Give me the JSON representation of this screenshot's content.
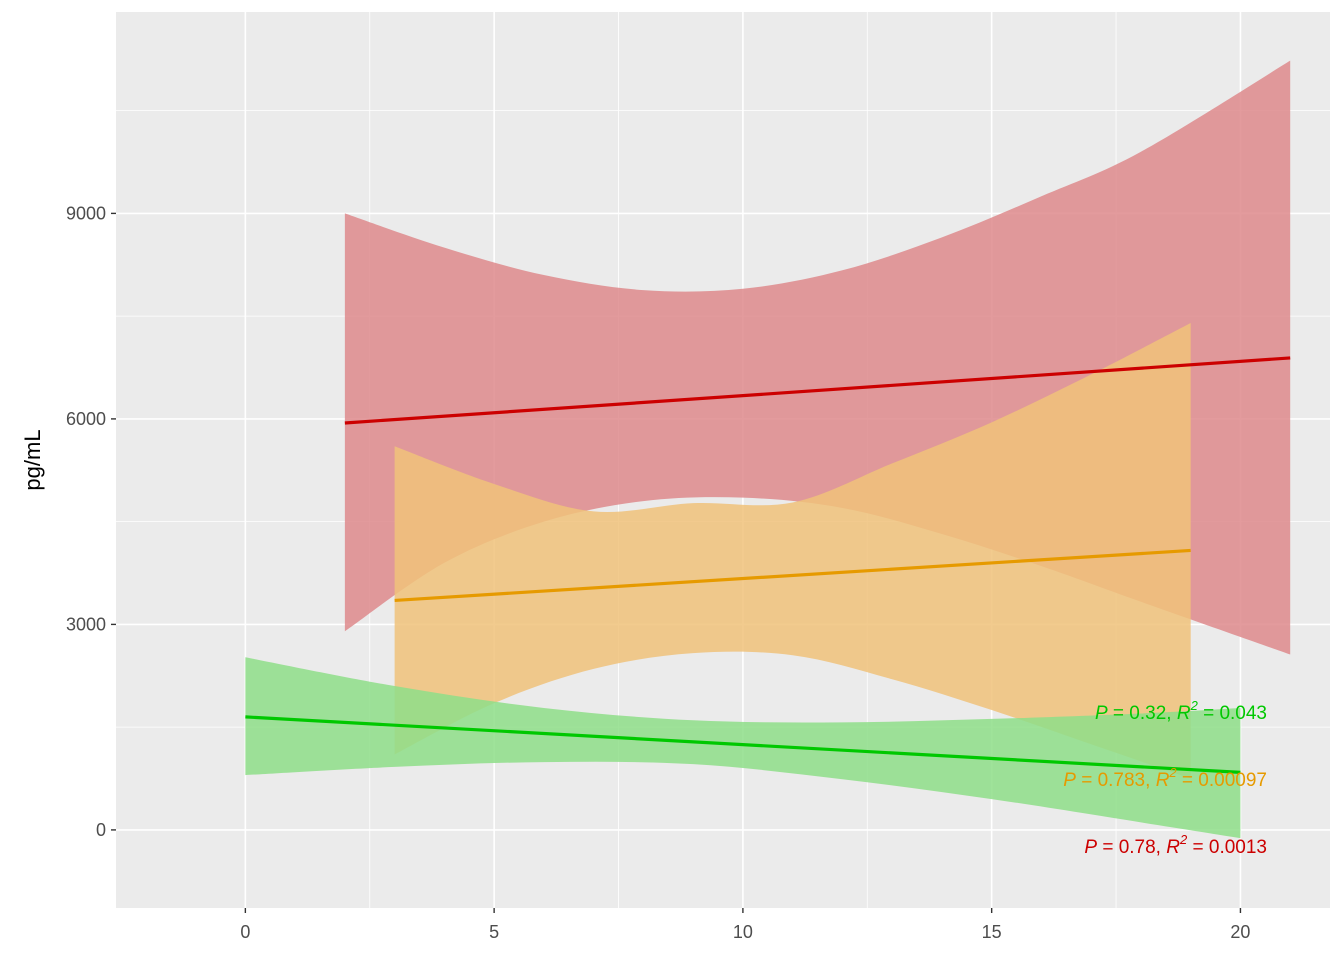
{
  "chart_data": {
    "type": "line",
    "title": "",
    "xlabel": "",
    "ylabel": "pg/mL",
    "xlim": [
      -2.6,
      21.8
    ],
    "ylim": [
      -1140,
      11940
    ],
    "x_ticks": [
      0,
      5,
      10,
      15,
      20
    ],
    "y_ticks": [
      0,
      3000,
      6000,
      9000
    ],
    "x_tick_labels": [
      "0",
      "5",
      "10",
      "15",
      "20"
    ],
    "y_tick_labels": [
      "0",
      "3000",
      "6000",
      "9000"
    ],
    "grid": true,
    "legend": "none",
    "background": "#ebebeb",
    "series": [
      {
        "color": "#cc0000",
        "fill": "#de8a8c",
        "fit_x": [
          2,
          21
        ],
        "fit_y": [
          5940,
          6890
        ],
        "band": [
          {
            "x": 2,
            "lower": 2900,
            "upper": 9000
          },
          {
            "x": 4,
            "lower": 3900,
            "upper": 8500
          },
          {
            "x": 6,
            "lower": 4500,
            "upper": 8100
          },
          {
            "x": 8,
            "lower": 4800,
            "upper": 7880
          },
          {
            "x": 10,
            "lower": 4850,
            "upper": 7900
          },
          {
            "x": 12,
            "lower": 4700,
            "upper": 8170
          },
          {
            "x": 14,
            "lower": 4320,
            "upper": 8650
          },
          {
            "x": 16,
            "lower": 3850,
            "upper": 9250
          },
          {
            "x": 18,
            "lower": 3330,
            "upper": 9900
          },
          {
            "x": 21,
            "lower": 2560,
            "upper": 11230
          }
        ],
        "annotation": {
          "p_label": "P",
          "p_value": " = 0.78, ",
          "r_label": "R",
          "sup": "2",
          "r_value": " = 0.0013"
        }
      },
      {
        "color": "#e69a00",
        "fill": "#f0c27a",
        "fit_x": [
          3,
          19
        ],
        "fit_y": [
          3350,
          4080
        ],
        "band": [
          {
            "x": 3,
            "lower": 1100,
            "upper": 5600
          },
          {
            "x": 5,
            "lower": 1850,
            "upper": 5050
          },
          {
            "x": 7,
            "lower": 2350,
            "upper": 4650
          },
          {
            "x": 9,
            "lower": 2580,
            "upper": 4770
          },
          {
            "x": 11,
            "lower": 2550,
            "upper": 4780
          },
          {
            "x": 13,
            "lower": 2200,
            "upper": 5350
          },
          {
            "x": 15,
            "lower": 1750,
            "upper": 5950
          },
          {
            "x": 17,
            "lower": 1250,
            "upper": 6650
          },
          {
            "x": 19,
            "lower": 750,
            "upper": 7400
          }
        ],
        "annotation": {
          "p_label": "P",
          "p_value": " = 0.783, ",
          "r_label": "R",
          "sup": "2",
          "r_value": " = 0.00097"
        }
      },
      {
        "color": "#00c800",
        "fill": "#8ede88",
        "fit_x": [
          0,
          20
        ],
        "fit_y": [
          1650,
          840
        ],
        "band": [
          {
            "x": 0,
            "lower": 800,
            "upper": 2520
          },
          {
            "x": 3,
            "lower": 920,
            "upper": 2100
          },
          {
            "x": 6,
            "lower": 990,
            "upper": 1780
          },
          {
            "x": 9,
            "lower": 960,
            "upper": 1600
          },
          {
            "x": 12,
            "lower": 740,
            "upper": 1570
          },
          {
            "x": 15,
            "lower": 450,
            "upper": 1620
          },
          {
            "x": 18,
            "lower": 110,
            "upper": 1700
          },
          {
            "x": 20,
            "lower": -120,
            "upper": 1780
          }
        ],
        "annotation": {
          "p_label": "P",
          "p_value": " = 0.32, ",
          "r_label": "R",
          "sup": "2",
          "r_value": " = 0.043"
        }
      }
    ]
  }
}
